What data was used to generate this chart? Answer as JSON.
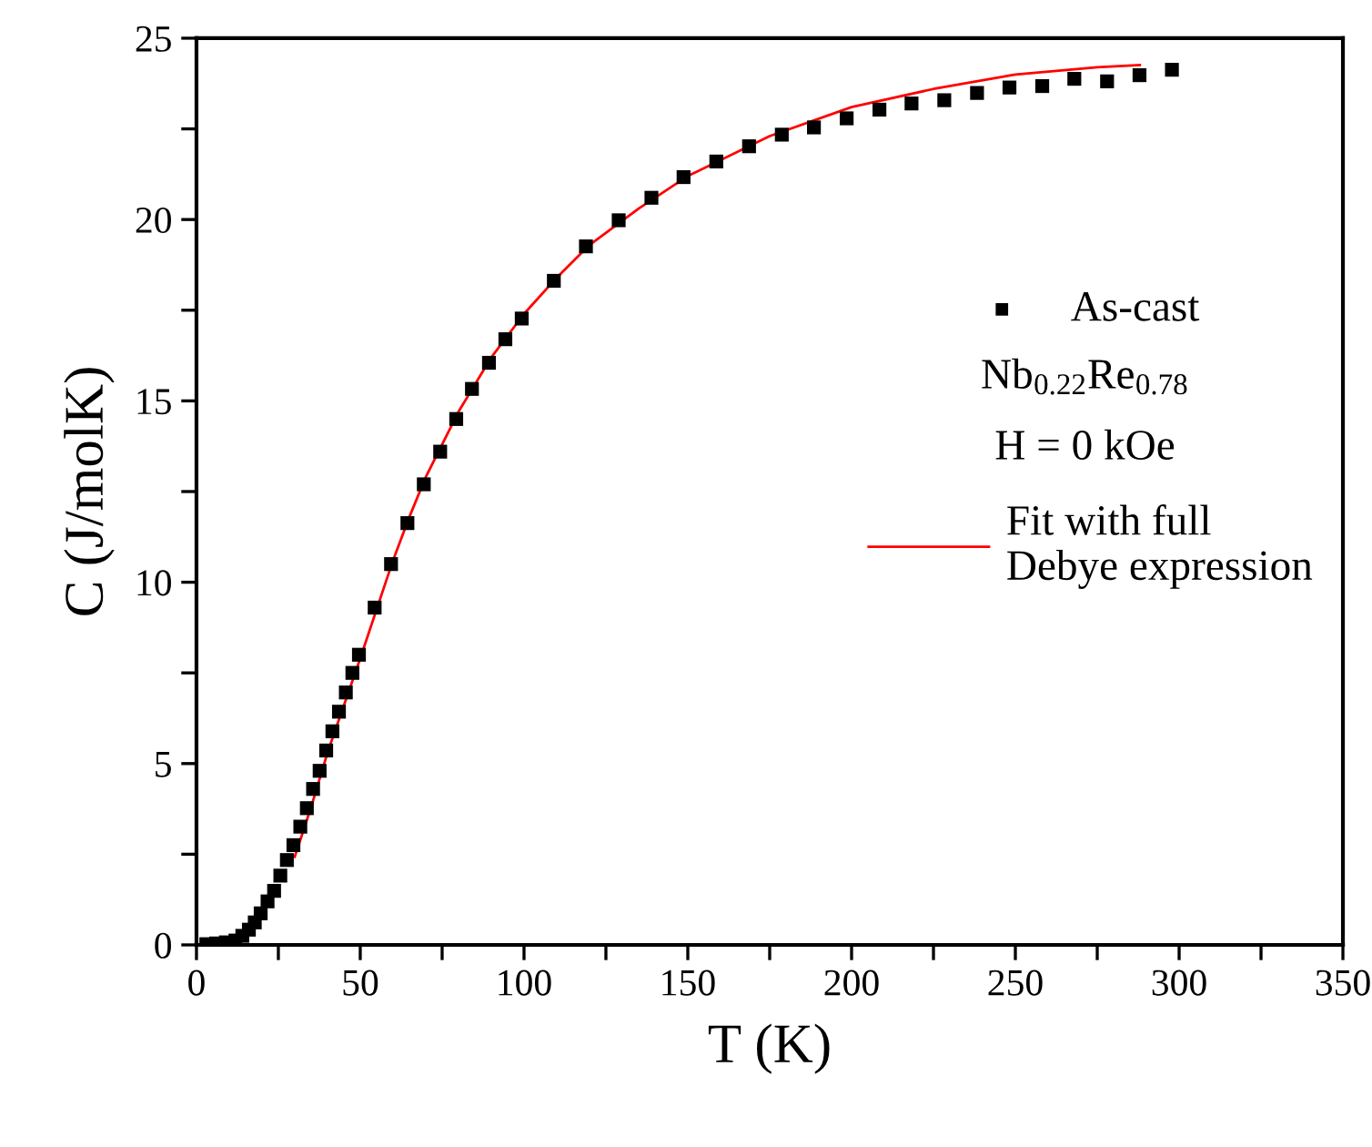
{
  "chart_data": {
    "type": "scatter",
    "xlabel": "T (K)",
    "ylabel": "C (J/molK)",
    "xlim": [
      0,
      350
    ],
    "ylim": [
      0,
      25
    ],
    "xticks": [
      0,
      {
        "value": 25,
        "label": null
      },
      50,
      {
        "value": 75,
        "label": null
      },
      100,
      {
        "value": 125,
        "label": null
      },
      150,
      {
        "value": 175,
        "label": null
      },
      200,
      {
        "value": 225,
        "label": null
      },
      250,
      {
        "value": 275,
        "label": null
      },
      300,
      {
        "value": 325,
        "label": null
      },
      350
    ],
    "yticks": [
      0,
      {
        "value": 2.5,
        "label": null
      },
      5,
      {
        "value": 7.5,
        "label": null
      },
      10,
      {
        "value": 12.5,
        "label": null
      },
      15,
      {
        "value": 17.5,
        "label": null
      },
      20,
      {
        "value": 22.5,
        "label": null
      },
      25
    ],
    "grid": false,
    "legend": "right",
    "annotations": [
      "Nb$_{0.22}$Re$_{0.78}$",
      "H = 0 kOe"
    ],
    "series": [
      {
        "name": "As-cast",
        "marker": "square",
        "color": "#000000",
        "x": [
          3,
          6,
          9,
          11.9,
          14,
          16,
          17.8,
          19.6,
          21.7,
          23.7,
          25.6,
          27.6,
          29.6,
          31.7,
          33.7,
          35.6,
          37.6,
          39.6,
          41.5,
          43.5,
          45.6,
          47.6,
          49.6,
          54.4,
          59.4,
          64.4,
          69.4,
          74.4,
          79.3,
          84.1,
          89.3,
          94.3,
          99.3,
          109.1,
          118.9,
          128.9,
          138.9,
          148.7,
          158.7,
          168.7,
          178.7,
          188.5,
          198.5,
          208.5,
          218.3,
          228.3,
          238.3,
          248.2,
          258.2,
          268,
          278,
          287.9,
          297.8
        ],
        "values": [
          0.02,
          0.04,
          0.07,
          0.12,
          0.25,
          0.42,
          0.62,
          0.87,
          1.2,
          1.49,
          1.91,
          2.34,
          2.75,
          3.26,
          3.77,
          4.3,
          4.8,
          5.36,
          5.89,
          6.43,
          6.96,
          7.5,
          8.0,
          9.3,
          10.5,
          11.63,
          12.7,
          13.6,
          14.5,
          15.33,
          16.05,
          16.7,
          17.27,
          18.31,
          19.26,
          19.98,
          20.6,
          21.17,
          21.6,
          22.02,
          22.34,
          22.54,
          22.79,
          23.03,
          23.2,
          23.29,
          23.49,
          23.64,
          23.68,
          23.88,
          23.81,
          23.98,
          24.13
        ]
      },
      {
        "name": "Fit with full\nDebye expression",
        "type": "line",
        "line_style": "solid",
        "color": "#ff0000",
        "x": [
          30,
          35,
          40,
          45,
          50,
          60,
          65,
          70,
          80,
          90,
          100,
          110,
          120,
          135,
          150,
          175,
          200,
          225,
          250,
          275,
          288
        ],
        "values": [
          2.43,
          3.8,
          5.3,
          6.6,
          7.9,
          10.6,
          11.8,
          12.9,
          14.7,
          16.2,
          17.4,
          18.4,
          19.3,
          20.3,
          21.2,
          22.3,
          23.1,
          23.6,
          24.0,
          24.2,
          24.26
        ]
      }
    ]
  }
}
